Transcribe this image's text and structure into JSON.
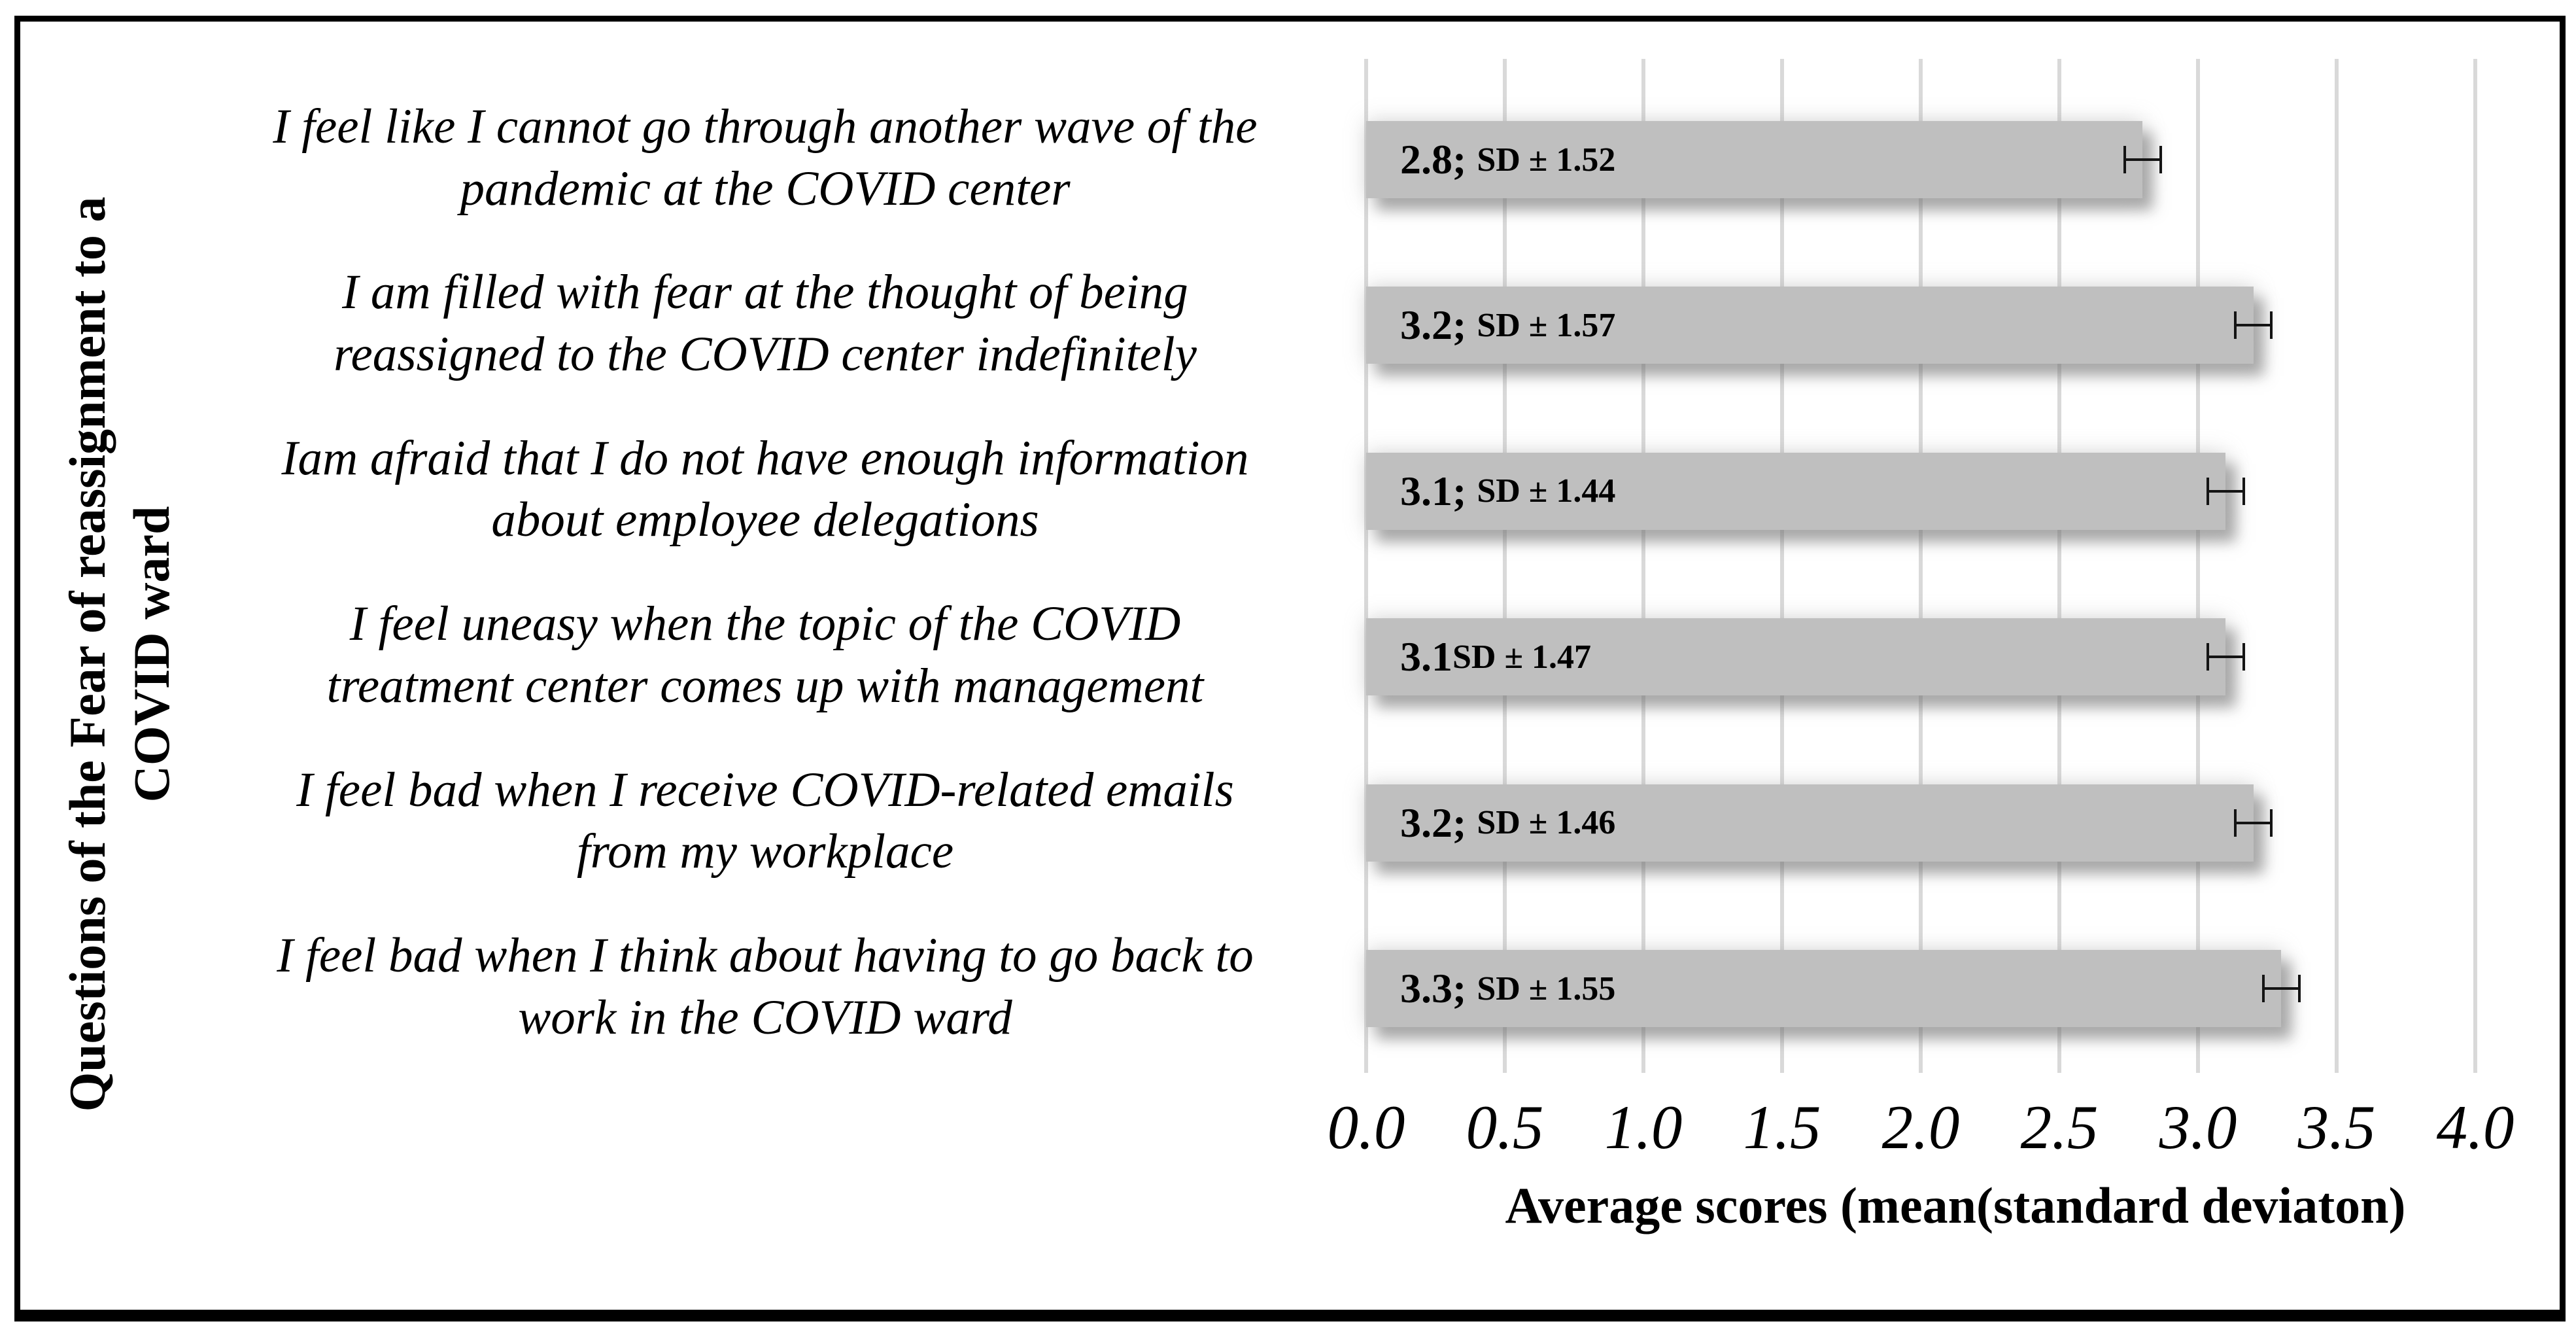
{
  "chart_data": {
    "type": "bar",
    "orientation": "horizontal",
    "xlabel": "Average scores (mean(standard deviaton)",
    "ylabel_lines": [
      "Questions of the Fear of reassignment to a",
      "COVID ward"
    ],
    "xlim": [
      0.0,
      4.0
    ],
    "xticks": [
      "0.0",
      "0.5",
      "1.0",
      "1.5",
      "2.0",
      "2.5",
      "3.0",
      "3.5",
      "4.0"
    ],
    "grid": "vertical-gridlines-on",
    "legend": "none",
    "bar_color": "#bfbfbf",
    "gridline_color": "#d9d9d9",
    "error_bar_color": "#141414",
    "bars": [
      {
        "category_lines": [
          "I feel like I cannot go through another wave of the",
          "pandemic at the COVID center"
        ],
        "value": 2.8,
        "sd": 1.52,
        "error_plus_minus": 0.07,
        "value_label": "2.8; ",
        "sd_label": "SD ± 1.52"
      },
      {
        "category_lines": [
          "I am filled with fear at the thought of being",
          "reassigned to the COVID center indefinitely"
        ],
        "value": 3.2,
        "sd": 1.57,
        "error_plus_minus": 0.07,
        "value_label": "3.2; ",
        "sd_label": "SD ± 1.57"
      },
      {
        "category_lines": [
          "Iam afraid that I do not have enough information",
          "about employee delegations"
        ],
        "value": 3.1,
        "sd": 1.44,
        "error_plus_minus": 0.07,
        "value_label": "3.1; ",
        "sd_label": "SD ± 1.44"
      },
      {
        "category_lines": [
          "I feel uneasy when the topic of the COVID",
          "treatment center comes up with management"
        ],
        "value": 3.1,
        "sd": 1.47,
        "error_plus_minus": 0.07,
        "value_label": "3.1",
        "sd_label": "SD ± 1.47"
      },
      {
        "category_lines": [
          "I feel bad when I receive COVID-related emails",
          "from my workplace"
        ],
        "value": 3.2,
        "sd": 1.46,
        "error_plus_minus": 0.07,
        "value_label": "3.2; ",
        "sd_label": "SD ± 1.46"
      },
      {
        "category_lines": [
          "I feel bad when I think about having to go back to",
          "work in the COVID ward"
        ],
        "value": 3.3,
        "sd": 1.55,
        "error_plus_minus": 0.07,
        "value_label": "3.3; ",
        "sd_label": "SD ± 1.55"
      }
    ]
  }
}
